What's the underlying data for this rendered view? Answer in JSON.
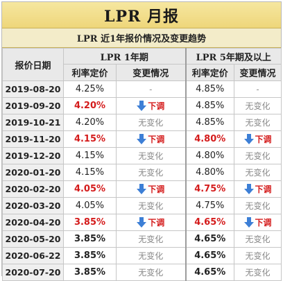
{
  "title": "LPR 月报",
  "subtitle": "LPR 近1年报价情况及变更趋势",
  "headers": {
    "date": "报价日期",
    "group_1y": "LPR 1年期",
    "group_5y": "LPR 5年期及以上",
    "rate": "利率定价",
    "change": "变更情况"
  },
  "change_labels": {
    "none": "-",
    "unchanged": "无变化",
    "cut": "下调"
  },
  "colors": {
    "title_bg": "#eed67a",
    "highlight_red": "#d41b1b",
    "arrow_blue": "#3d7fd6"
  },
  "rows": [
    {
      "date": "2019-08-20",
      "r1": "4.25%",
      "r1_style": "normal",
      "c1": "-",
      "c1_type": "none",
      "r5": "4.85%",
      "r5_style": "normal",
      "c5": "-",
      "c5_type": "none"
    },
    {
      "date": "2019-09-20",
      "r1": "4.20%",
      "r1_style": "red",
      "c1": "下调",
      "c1_type": "cut",
      "r5": "4.85%",
      "r5_style": "normal",
      "c5": "无变化",
      "c5_type": "unchanged"
    },
    {
      "date": "2019-10-21",
      "r1": "4.20%",
      "r1_style": "normal",
      "c1": "无变化",
      "c1_type": "unchanged",
      "r5": "4.85%",
      "r5_style": "normal",
      "c5": "无变化",
      "c5_type": "unchanged"
    },
    {
      "date": "2019-11-20",
      "r1": "4.15%",
      "r1_style": "red",
      "c1": "下调",
      "c1_type": "cut",
      "r5": "4.80%",
      "r5_style": "red",
      "c5": "下调",
      "c5_type": "cut"
    },
    {
      "date": "2019-12-20",
      "r1": "4.15%",
      "r1_style": "normal",
      "c1": "无变化",
      "c1_type": "unchanged",
      "r5": "4.80%",
      "r5_style": "normal",
      "c5": "无变化",
      "c5_type": "unchanged"
    },
    {
      "date": "2020-01-20",
      "r1": "4.15%",
      "r1_style": "normal",
      "c1": "无变化",
      "c1_type": "unchanged",
      "r5": "4.80%",
      "r5_style": "normal",
      "c5": "无变化",
      "c5_type": "unchanged"
    },
    {
      "date": "2020-02-20",
      "r1": "4.05%",
      "r1_style": "red",
      "c1": "下调",
      "c1_type": "cut",
      "r5": "4.75%",
      "r5_style": "red",
      "c5": "下调",
      "c5_type": "cut"
    },
    {
      "date": "2020-03-20",
      "r1": "4.05%",
      "r1_style": "normal",
      "c1": "无变化",
      "c1_type": "unchanged",
      "r5": "4.75%",
      "r5_style": "normal",
      "c5": "无变化",
      "c5_type": "unchanged"
    },
    {
      "date": "2020-04-20",
      "r1": "3.85%",
      "r1_style": "red",
      "c1": "下调",
      "c1_type": "cut",
      "r5": "4.65%",
      "r5_style": "red",
      "c5": "下调",
      "c5_type": "cut"
    },
    {
      "date": "2020-05-20",
      "r1": "3.85%",
      "r1_style": "bold",
      "c1": "无变化",
      "c1_type": "unchanged",
      "r5": "4.65%",
      "r5_style": "bold",
      "c5": "无变化",
      "c5_type": "unchanged"
    },
    {
      "date": "2020-06-22",
      "r1": "3.85%",
      "r1_style": "bold",
      "c1": "无变化",
      "c1_type": "unchanged",
      "r5": "4.65%",
      "r5_style": "bold",
      "c5": "无变化",
      "c5_type": "unchanged"
    },
    {
      "date": "2020-07-20",
      "r1": "3.85%",
      "r1_style": "bold",
      "c1": "无变化",
      "c1_type": "unchanged",
      "r5": "4.65%",
      "r5_style": "bold",
      "c5": "无变化",
      "c5_type": "unchanged"
    }
  ]
}
